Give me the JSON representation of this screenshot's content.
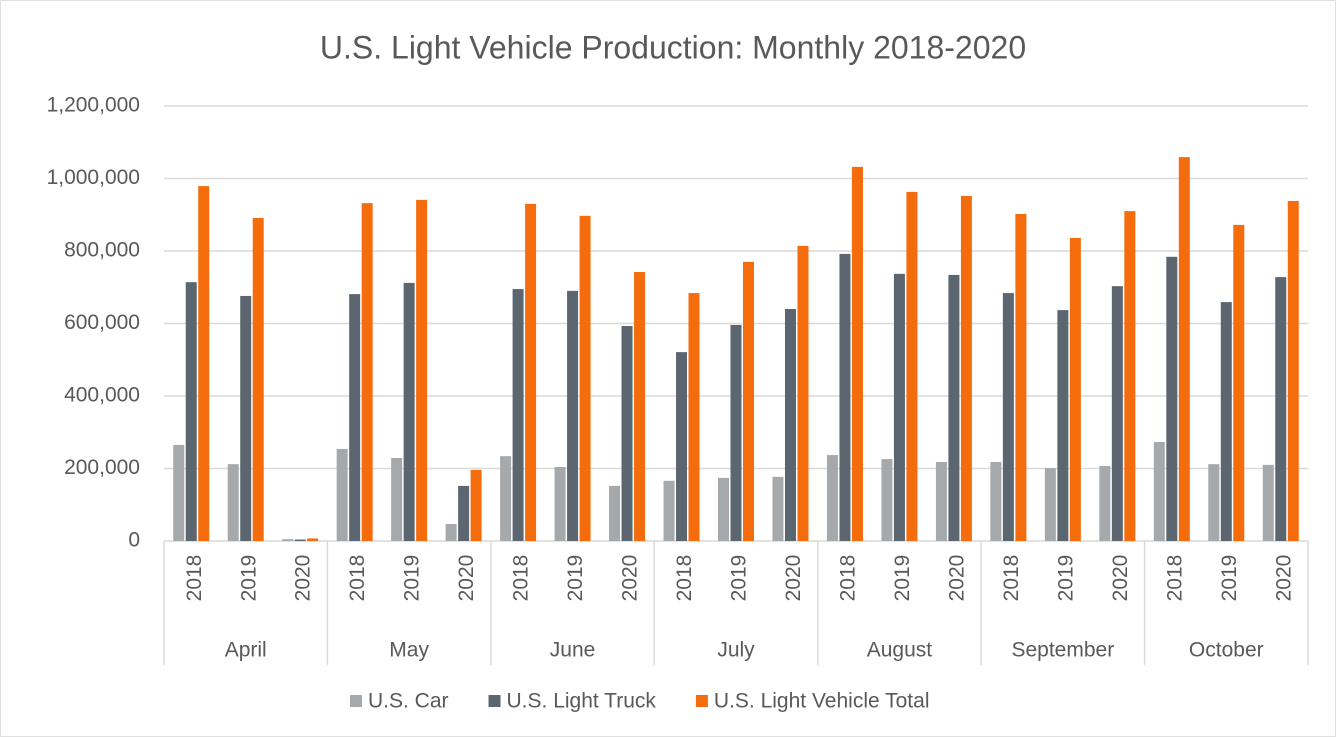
{
  "chart_data": {
    "type": "bar",
    "title": "U.S. Light Vehicle Production: Monthly 2018-2020",
    "groups": [
      "April",
      "May",
      "June",
      "July",
      "August",
      "September",
      "October"
    ],
    "categories": [
      "2018",
      "2019",
      "2020",
      "2018",
      "2019",
      "2020",
      "2018",
      "2019",
      "2020",
      "2018",
      "2019",
      "2020",
      "2018",
      "2019",
      "2020",
      "2018",
      "2019",
      "2020",
      "2018",
      "2019",
      "2020"
    ],
    "series": [
      {
        "name": "U.S. Car",
        "color": "#a5a9ac",
        "values": [
          265000,
          212000,
          5000,
          254000,
          229000,
          47000,
          234000,
          204000,
          152000,
          166000,
          174000,
          177000,
          237000,
          226000,
          218000,
          218000,
          201000,
          207000,
          273000,
          212000,
          210000
        ]
      },
      {
        "name": "U.S. Light Truck",
        "color": "#5b6670",
        "values": [
          714000,
          676000,
          4000,
          681000,
          712000,
          152000,
          695000,
          690000,
          593000,
          521000,
          596000,
          640000,
          792000,
          737000,
          734000,
          684000,
          637000,
          703000,
          784000,
          659000,
          728000
        ]
      },
      {
        "name": "U.S. Light Vehicle Total",
        "color": "#f46c0b",
        "values": [
          979000,
          891000,
          7000,
          932000,
          941000,
          196000,
          930000,
          897000,
          742000,
          684000,
          770000,
          814000,
          1032000,
          963000,
          952000,
          902000,
          836000,
          910000,
          1059000,
          872000,
          938000
        ]
      }
    ],
    "ylim": [
      0,
      1200000
    ],
    "yticks": [
      0,
      {
        "value": 200000,
        "label": "200,000"
      },
      {
        "value": 400000,
        "label": "400,000"
      },
      {
        "value": 600000,
        "label": "600,000"
      },
      {
        "value": 800000,
        "label": "800,000"
      },
      {
        "value": 1000000,
        "label": "1,000,000"
      },
      {
        "value": 1200000,
        "label": "1,200,000"
      }
    ],
    "grid": true,
    "legend": "bottom"
  }
}
